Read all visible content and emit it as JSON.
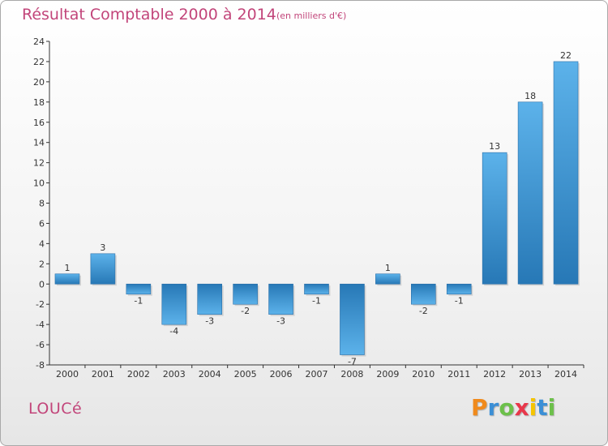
{
  "chart_data": {
    "type": "bar",
    "title": "Résultat Comptable 2000 à 2014",
    "subtitle": "(en milliers d'€)",
    "categories": [
      "2000",
      "2001",
      "2002",
      "2003",
      "2004",
      "2005",
      "2006",
      "2007",
      "2008",
      "2009",
      "2010",
      "2011",
      "2012",
      "2013",
      "2014"
    ],
    "values": [
      1,
      3,
      -1,
      -4,
      -3,
      -2,
      -3,
      -1,
      -7,
      1,
      -2,
      -1,
      13,
      18,
      22
    ],
    "value_labels": [
      "1",
      "3",
      "-1",
      "-4",
      "-3",
      "-2",
      "-3",
      "-1",
      "-7",
      "1",
      "-2",
      "-1",
      "13",
      "18",
      "22"
    ],
    "ylim": [
      -8,
      24
    ],
    "yticks": [
      -8,
      -6,
      -4,
      -2,
      0,
      2,
      4,
      6,
      8,
      10,
      12,
      14,
      16,
      18,
      20,
      22,
      24
    ],
    "xlabel": "",
    "ylabel": "",
    "grid": false,
    "colors": {
      "bar_light": "#5aaee8",
      "bar_dark": "#2a7ab8",
      "axis": "#333333"
    }
  },
  "footer": {
    "commune": "LOUCé",
    "brand_letters": [
      "P",
      "r",
      "o",
      "x",
      "i",
      "t",
      "i"
    ],
    "brand_colors": [
      "#f08a1c",
      "#3b8fd6",
      "#6cc04a",
      "#e8374a",
      "#f5c400",
      "#3b8fd6",
      "#6cc04a"
    ]
  }
}
